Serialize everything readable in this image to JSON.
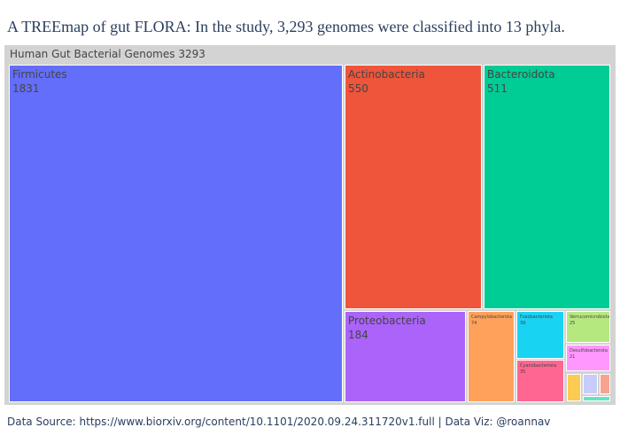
{
  "title": "A TREEmap of gut FLORA:  In the study, 3,293 genomes were classified into 13 phyla.",
  "footer": "Data Source: https://www.biorxiv.org/content/10.1101/2020.09.24.311720v1.full  |  Data Viz: @roannav",
  "chart_data": {
    "type": "treemap",
    "root": {
      "label": "Human Gut Bacterial Genomes",
      "value": 3293
    },
    "tiles": [
      {
        "label": "Firmicutes",
        "value": 1831,
        "color": "#636efa"
      },
      {
        "label": "Actinobacteria",
        "value": 550,
        "color": "#ef553b"
      },
      {
        "label": "Bacteroidota",
        "value": 511,
        "color": "#00cc96"
      },
      {
        "label": "Proteobacteria",
        "value": 184,
        "color": "#ab63fa"
      },
      {
        "label": "Campylobacterota",
        "value": 74,
        "color": "#ffa15a"
      },
      {
        "label": "Fusobacteriota",
        "value": 39,
        "color": "#19d3f3"
      },
      {
        "label": "Cyanobacteriota",
        "value": 35,
        "color": "#ff6692"
      },
      {
        "label": "Verrucomicrobiota",
        "value": 25,
        "color": "#b6e880"
      },
      {
        "label": "Desulfobacterota",
        "value": 21,
        "color": "#ff97ff"
      },
      {
        "label": "",
        "value": null,
        "color": "#fecb52"
      },
      {
        "label": "",
        "value": null,
        "color": "#c9cbf9"
      },
      {
        "label": "",
        "value": null,
        "color": "#f7a390"
      },
      {
        "label": "",
        "value": null,
        "color": "#66e3c5"
      }
    ]
  }
}
